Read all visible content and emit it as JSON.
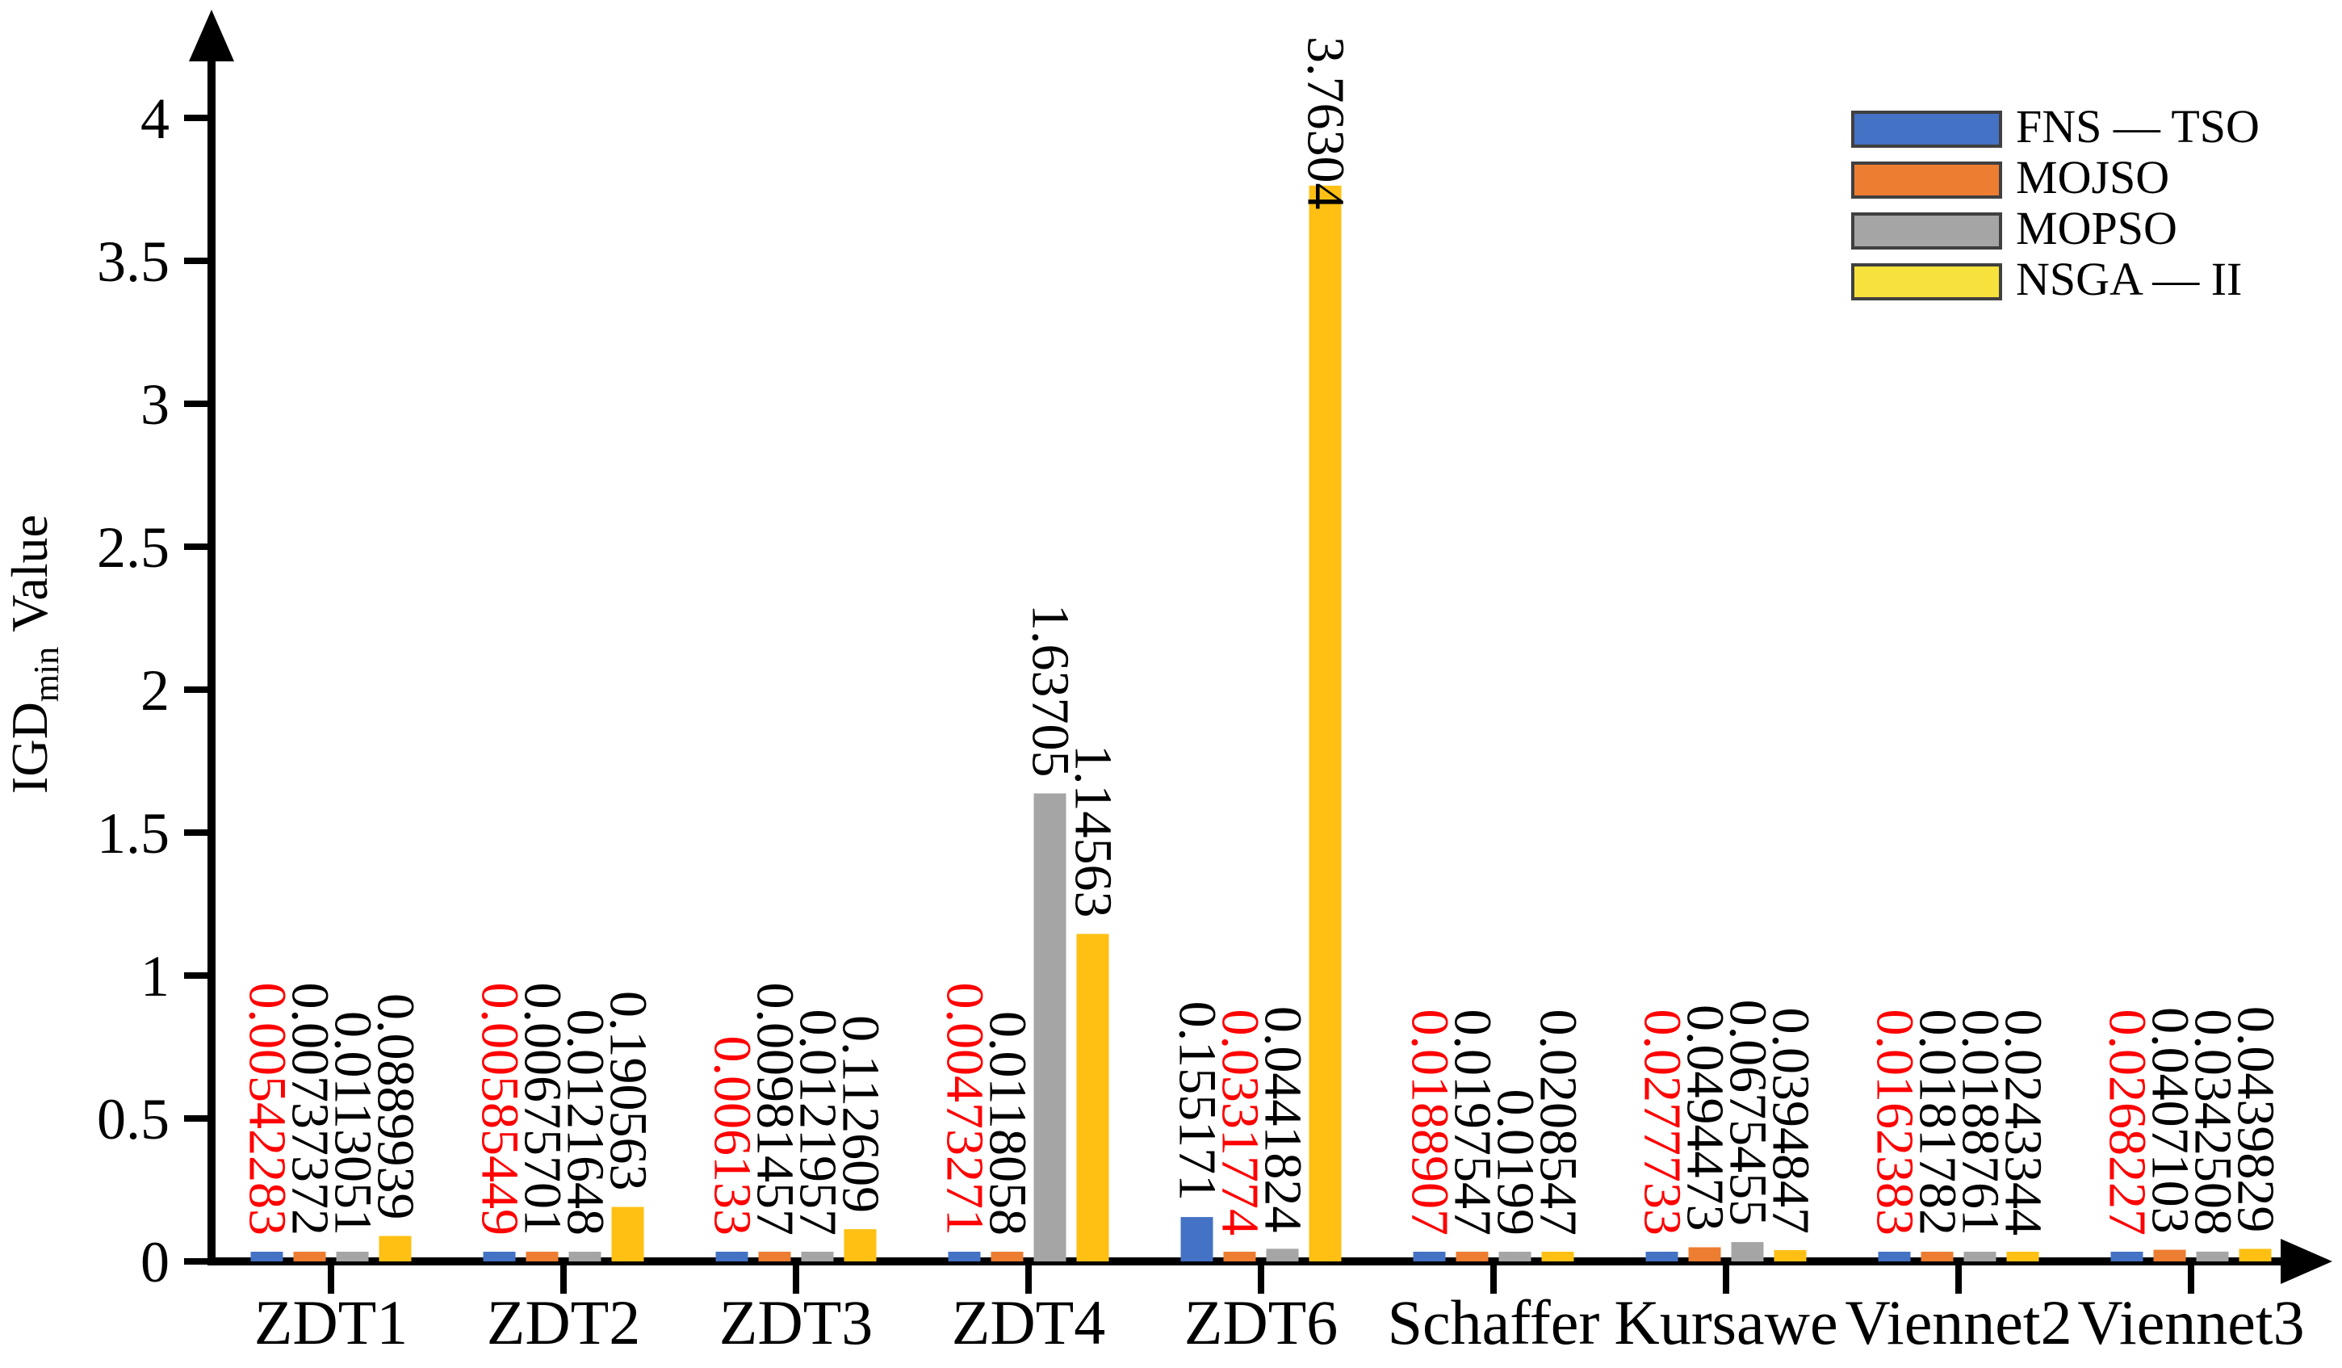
{
  "figure": {
    "background": "#FFFFFF",
    "axis_color": "#000000"
  },
  "chart_data": {
    "type": "bar",
    "title": "",
    "xlabel": "",
    "ylabel": {
      "main": "IGD",
      "subscript": "min",
      "rest": "Value"
    },
    "ylim": [
      0,
      4
    ],
    "yticks": [
      "0",
      "0.5",
      "1",
      "1.5",
      "2",
      "2.5",
      "3",
      "3.5",
      "4"
    ],
    "grid": false,
    "legend_position": "top-right",
    "categories": [
      "ZDT1",
      "ZDT2",
      "ZDT3",
      "ZDT4",
      "ZDT6",
      "Schaffer",
      "Kursawe",
      "Viennet2",
      "Viennet3"
    ],
    "series": [
      {
        "name": "FNS — TSO",
        "key": "fns-tso",
        "color": "#4472C4",
        "legend_color": "#4472C4",
        "values": [
          0.00542283,
          0.00585449,
          0.006133,
          0.00473271,
          0.155171,
          0.0188907,
          0.0277733,
          0.0162383,
          0.0268227
        ],
        "value_labels": [
          "0.00542283",
          "0.00585449",
          "0.006133",
          "0.00473271",
          "0.155171",
          "0.0188907",
          "0.0277733",
          "0.0162383",
          "0.0268227"
        ]
      },
      {
        "name": "MOJSO",
        "key": "mojso",
        "color": "#ED7D31",
        "legend_color": "#ED7D31",
        "values": [
          0.00737372,
          0.00675701,
          0.00981457,
          0.0118058,
          0.0331774,
          0.0197547,
          0.0494473,
          0.0181782,
          0.0407103
        ],
        "value_labels": [
          "0.00737372",
          "0.00675701",
          "0.00981457",
          "0.0118058",
          "0.0331774",
          "0.0197547",
          "0.0494473",
          "0.0181782",
          "0.0407103"
        ]
      },
      {
        "name": "MOPSO",
        "key": "mopso",
        "color": "#A5A5A5",
        "legend_color": "#A5A5A5",
        "values": [
          0.0113051,
          0.0121648,
          0.0121957,
          1.63705,
          0.0441824,
          0.0199,
          0.0675455,
          0.0188761,
          0.0342508
        ],
        "value_labels": [
          "0.0113051",
          "0.0121648",
          "0.0121957",
          "1.63705",
          "0.0441824",
          "0.0199",
          "0.0675455",
          "0.0188761",
          "0.0342508"
        ]
      },
      {
        "name": "NSGA — II",
        "key": "nsga-ii",
        "color": "#FFC013",
        "legend_color": "#F7E13C",
        "values": [
          0.0889939,
          0.190563,
          0.112609,
          1.14563,
          3.76304,
          0.0208547,
          0.0394847,
          0.0243344,
          0.0439829
        ],
        "value_labels": [
          "0.0889939",
          "0.190563",
          "0.112609",
          "1.14563",
          "3.76304",
          "0.0208547",
          "0.0394847",
          "0.0243344",
          "0.0439829"
        ]
      }
    ],
    "best_value_index_per_category": [
      0,
      0,
      0,
      0,
      1,
      0,
      0,
      0,
      0
    ],
    "best_label_color": "#FF0000",
    "label_color": "#000000"
  }
}
